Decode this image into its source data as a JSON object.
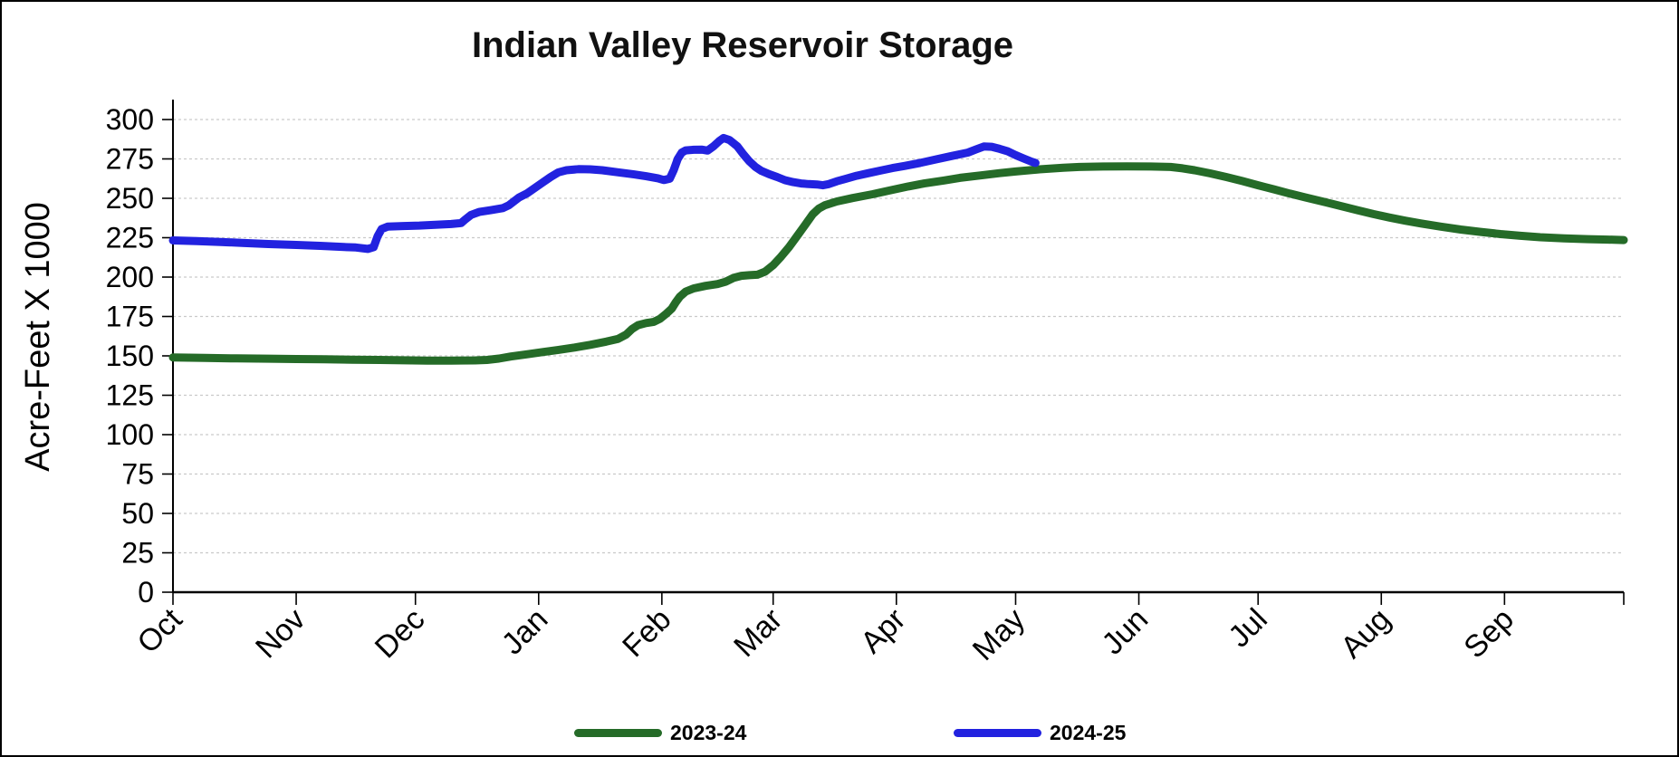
{
  "window": {
    "background": "#ffffff",
    "border_color": "#000000"
  },
  "chart_data": {
    "type": "line",
    "title": "Indian Valley Reservoir Storage",
    "xlabel": "",
    "ylabel": "Acre-Feet X 1000",
    "ylim": [
      0,
      300
    ],
    "y_ticks": [
      0,
      25,
      50,
      75,
      100,
      125,
      150,
      175,
      200,
      225,
      250,
      275,
      300
    ],
    "grid": "horizontal-dashed",
    "grid_color": "#c9c9c9",
    "axis_color": "#000000",
    "legend_position": "bottom",
    "x_unit": "days since Oct 1",
    "total_days": 365,
    "x_months": [
      {
        "label": "Oct",
        "start_day": 0
      },
      {
        "label": "Nov",
        "start_day": 31
      },
      {
        "label": "Dec",
        "start_day": 61
      },
      {
        "label": "Jan",
        "start_day": 92
      },
      {
        "label": "Feb",
        "start_day": 123
      },
      {
        "label": "Mar",
        "start_day": 151
      },
      {
        "label": "Apr",
        "start_day": 182
      },
      {
        "label": "May",
        "start_day": 212
      },
      {
        "label": "Jun",
        "start_day": 243
      },
      {
        "label": "Jul",
        "start_day": 273
      },
      {
        "label": "Aug",
        "start_day": 304
      },
      {
        "label": "Sep",
        "start_day": 335
      }
    ],
    "series": [
      {
        "name": "2023-24",
        "color": "#256B28",
        "points": [
          [
            0,
            149
          ],
          [
            8,
            148.7
          ],
          [
            16,
            148.4
          ],
          [
            24,
            148.2
          ],
          [
            31,
            148
          ],
          [
            38,
            147.8
          ],
          [
            45,
            147.6
          ],
          [
            52,
            147.4
          ],
          [
            58,
            147.2
          ],
          [
            64,
            147
          ],
          [
            70,
            147
          ],
          [
            76,
            147.1
          ],
          [
            79,
            147.4
          ],
          [
            82,
            148.3
          ],
          [
            85,
            149.6
          ],
          [
            89,
            151
          ],
          [
            93,
            152.4
          ],
          [
            97,
            153.8
          ],
          [
            101,
            155.3
          ],
          [
            105,
            157
          ],
          [
            109,
            159
          ],
          [
            112,
            160.8
          ],
          [
            114,
            163.5
          ],
          [
            115.5,
            167
          ],
          [
            117,
            169.5
          ],
          [
            119,
            170.8
          ],
          [
            121,
            171.6
          ],
          [
            122.5,
            173.5
          ],
          [
            124,
            176.5
          ],
          [
            125.5,
            180
          ],
          [
            126.5,
            184
          ],
          [
            127.5,
            187.5
          ],
          [
            129,
            190.8
          ],
          [
            131,
            192.8
          ],
          [
            134,
            194.4
          ],
          [
            137,
            195.6
          ],
          [
            139,
            197
          ],
          [
            141,
            199.5
          ],
          [
            143,
            200.8
          ],
          [
            145,
            201.2
          ],
          [
            147,
            201.5
          ],
          [
            149,
            203.5
          ],
          [
            151,
            207.5
          ],
          [
            153,
            213
          ],
          [
            155,
            219
          ],
          [
            157,
            226
          ],
          [
            159,
            233
          ],
          [
            161,
            240
          ],
          [
            162.5,
            243.5
          ],
          [
            164,
            245.6
          ],
          [
            167,
            248
          ],
          [
            171,
            250.2
          ],
          [
            176,
            252.6
          ],
          [
            180,
            254.8
          ],
          [
            185,
            257.5
          ],
          [
            189,
            259.4
          ],
          [
            194,
            261.3
          ],
          [
            198,
            263
          ],
          [
            203,
            264.5
          ],
          [
            208,
            266
          ],
          [
            212,
            267
          ],
          [
            218,
            268.4
          ],
          [
            224,
            269.4
          ],
          [
            228,
            269.9
          ],
          [
            234,
            270.2
          ],
          [
            240,
            270.3
          ],
          [
            246,
            270.2
          ],
          [
            251,
            269.9
          ],
          [
            254,
            269
          ],
          [
            257,
            267.8
          ],
          [
            261,
            265.8
          ],
          [
            265,
            263.5
          ],
          [
            269,
            261
          ],
          [
            273,
            258.3
          ],
          [
            277,
            255.7
          ],
          [
            281,
            253
          ],
          [
            285,
            250.5
          ],
          [
            290,
            247.5
          ],
          [
            294,
            245
          ],
          [
            298,
            242.5
          ],
          [
            302,
            240
          ],
          [
            306,
            237.8
          ],
          [
            310,
            235.8
          ],
          [
            314,
            234
          ],
          [
            319,
            232
          ],
          [
            324,
            230.2
          ],
          [
            329,
            228.7
          ],
          [
            334,
            227.3
          ],
          [
            339,
            226.2
          ],
          [
            344,
            225.3
          ],
          [
            350,
            224.6
          ],
          [
            356,
            224.1
          ],
          [
            361,
            223.8
          ],
          [
            365,
            223.5
          ]
        ]
      },
      {
        "name": "2024-25",
        "color": "#2222DF",
        "points": [
          [
            0,
            223.3
          ],
          [
            6,
            222.9
          ],
          [
            12,
            222.3
          ],
          [
            18,
            221.6
          ],
          [
            24,
            221
          ],
          [
            31,
            220.4
          ],
          [
            37,
            219.8
          ],
          [
            43,
            219.1
          ],
          [
            46,
            218.8
          ],
          [
            49,
            217.9
          ],
          [
            50.5,
            219
          ],
          [
            51.5,
            226
          ],
          [
            52.5,
            230.5
          ],
          [
            54,
            232
          ],
          [
            58,
            232.4
          ],
          [
            62,
            232.7
          ],
          [
            66,
            233.2
          ],
          [
            70,
            233.7
          ],
          [
            72.5,
            234.3
          ],
          [
            73.5,
            236.5
          ],
          [
            75,
            239.5
          ],
          [
            77,
            241.3
          ],
          [
            80,
            242.5
          ],
          [
            83,
            243.8
          ],
          [
            84.5,
            245.6
          ],
          [
            87,
            250.4
          ],
          [
            89,
            253
          ],
          [
            91,
            256.5
          ],
          [
            93,
            260
          ],
          [
            95,
            263.5
          ],
          [
            97,
            266.5
          ],
          [
            99,
            267.8
          ],
          [
            102,
            268.5
          ],
          [
            105,
            268.4
          ],
          [
            108,
            267.8
          ],
          [
            112,
            266.5
          ],
          [
            116,
            265.2
          ],
          [
            119,
            264
          ],
          [
            122,
            262.7
          ],
          [
            123.5,
            261.6
          ],
          [
            125,
            262.5
          ],
          [
            126,
            268
          ],
          [
            127,
            275
          ],
          [
            128,
            279
          ],
          [
            129,
            280.4
          ],
          [
            131,
            280.8
          ],
          [
            133,
            280.9
          ],
          [
            134.5,
            280.3
          ],
          [
            136,
            283
          ],
          [
            137.5,
            286.5
          ],
          [
            138.5,
            288.3
          ],
          [
            140,
            287
          ],
          [
            141,
            285
          ],
          [
            142,
            283
          ],
          [
            143.5,
            278
          ],
          [
            145,
            273.5
          ],
          [
            146.5,
            270
          ],
          [
            148,
            267.5
          ],
          [
            150,
            265.3
          ],
          [
            152,
            263.5
          ],
          [
            154,
            261.5
          ],
          [
            156,
            260.3
          ],
          [
            158,
            259.4
          ],
          [
            160,
            259
          ],
          [
            162,
            258.8
          ],
          [
            163.5,
            258.3
          ],
          [
            165,
            259
          ],
          [
            167,
            260.8
          ],
          [
            169,
            262.2
          ],
          [
            172,
            264.3
          ],
          [
            175,
            266
          ],
          [
            178,
            267.6
          ],
          [
            181,
            269.2
          ],
          [
            184,
            270.5
          ],
          [
            188,
            272.5
          ],
          [
            192,
            274.7
          ],
          [
            196,
            276.9
          ],
          [
            200,
            279
          ],
          [
            202,
            281
          ],
          [
            204,
            282.9
          ],
          [
            206,
            282.7
          ],
          [
            208,
            281.4
          ],
          [
            210,
            279.8
          ],
          [
            212,
            277.4
          ],
          [
            214,
            275.3
          ],
          [
            216,
            273.3
          ],
          [
            217,
            272.5
          ]
        ]
      }
    ]
  }
}
